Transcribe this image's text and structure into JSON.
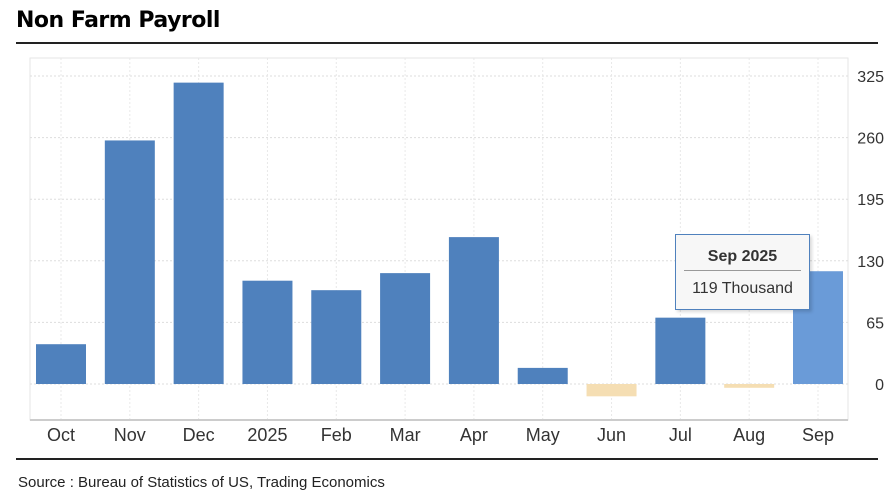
{
  "title": "Non Farm Payroll",
  "source": "Source : Bureau of Statistics of US, Trading Economics",
  "chart_data": {
    "type": "bar",
    "title": "Non Farm Payroll",
    "categories": [
      "Oct",
      "Nov",
      "Dec",
      "2025",
      "Feb",
      "Mar",
      "Apr",
      "May",
      "Jun",
      "Jul",
      "Aug",
      "Sep"
    ],
    "values": [
      42,
      257,
      318,
      109,
      99,
      117,
      155,
      17,
      -13,
      70,
      -4,
      119
    ],
    "unit": "Thousand",
    "yticks": [
      0,
      65,
      130,
      195,
      260,
      325
    ],
    "ylim": [
      -25,
      345
    ],
    "y_axis_position": "right",
    "grid": true,
    "colors": {
      "positive": "#4f81bd",
      "negative": "#f5deb3",
      "highlight": "#6a9bd8"
    },
    "tooltip": {
      "title": "Sep 2025",
      "value": "119 Thousand"
    }
  }
}
